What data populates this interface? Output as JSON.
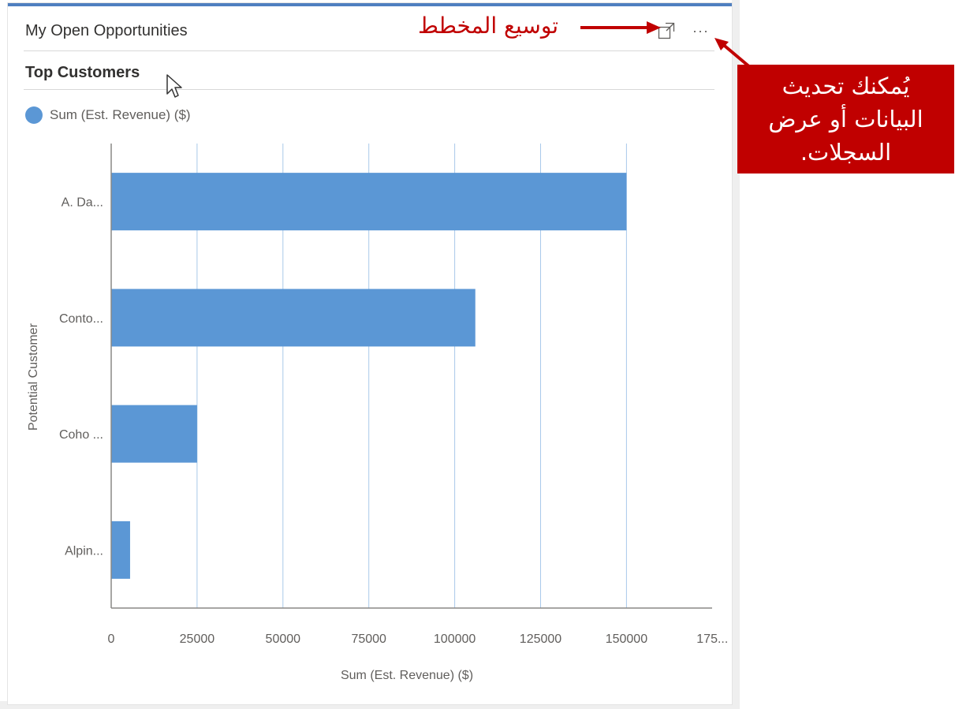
{
  "card": {
    "title": "My Open Opportunities",
    "chart_title": "Top Customers"
  },
  "icons": {
    "expand": "expand-icon",
    "more": "more-options-icon",
    "cursor": "mouse-cursor-icon"
  },
  "more_label": "···",
  "colors": {
    "bar": "#5b97d5",
    "accent": "#4f7fc0",
    "annotation": "#c00000"
  },
  "annotations": {
    "expand_label": "توسيع المخطط",
    "callout_lines": [
      "يُمكنك تحديث",
      "البيانات أو عرض",
      "السجلات."
    ]
  },
  "chart_data": {
    "type": "bar",
    "orientation": "horizontal",
    "categories": [
      "A. Da...",
      "Conto...",
      "Coho ...",
      "Alpin..."
    ],
    "series": [
      {
        "name": "Sum (Est. Revenue) ($)",
        "values": [
          150000,
          106000,
          25000,
          5500
        ]
      }
    ],
    "x_ticks": [
      "0",
      "25000",
      "50000",
      "75000",
      "100000",
      "125000",
      "150000",
      "175..."
    ],
    "x_tick_values": [
      0,
      25000,
      50000,
      75000,
      100000,
      125000,
      150000,
      175000
    ],
    "xlim": [
      0,
      175000
    ],
    "xlabel": "Sum (Est. Revenue) ($)",
    "ylabel": "Potential Customer",
    "grid": true,
    "legend": "top-left"
  }
}
